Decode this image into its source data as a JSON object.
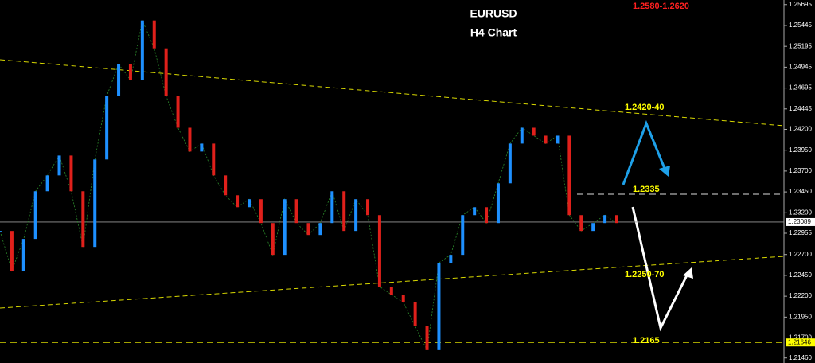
{
  "chart_data": {
    "type": "line",
    "title": "EURUSD",
    "subtitle": "H4 Chart",
    "values": [
      1.22982,
      1.22506,
      1.22887,
      1.23458,
      1.23648,
      1.23886,
      1.23458,
      1.22791,
      1.23839,
      1.246,
      1.24981,
      1.24791,
      1.25505,
      1.25171,
      1.246,
      1.24219,
      1.23934,
      1.24029,
      1.23648,
      1.2341,
      1.23267,
      1.23363,
      1.23077,
      1.22696,
      1.23363,
      1.23077,
      1.22934,
      1.23077,
      1.23458,
      1.22982,
      1.23363,
      1.23172,
      1.22315,
      1.2222,
      1.22125,
      1.21839,
      1.21554,
      1.22601,
      1.22696,
      1.23172,
      1.23267,
      1.23077,
      1.23553,
      1.24029,
      1.24219,
      1.24124,
      1.24029,
      1.24124,
      1.23172,
      1.22982,
      1.23077,
      1.23172,
      1.23077
    ],
    "up_color": "#1e90ff",
    "down_color": "#e0201b",
    "ylim": [
      1.214,
      1.2575
    ],
    "yticks": [
      1.25695,
      1.25445,
      1.25195,
      1.24945,
      1.24695,
      1.24445,
      {
        "value": 1.242,
        "label": "1.24200"
      },
      {
        "value": 1.2395,
        "label": "1.23950"
      },
      {
        "value": 1.237,
        "label": "1.23700"
      },
      {
        "value": 1.2345,
        "label": "1.23450"
      },
      {
        "value": 1.232,
        "label": "1.23200"
      },
      1.22955,
      {
        "value": 1.227,
        "label": "1.22700"
      },
      {
        "value": 1.2245,
        "label": "1.22450"
      },
      {
        "value": 1.222,
        "label": "1.22200"
      },
      {
        "value": 1.2195,
        "label": "1.21950"
      },
      {
        "value": 1.217,
        "label": "1.21700"
      },
      {
        "value": 1.2146,
        "label": "1.21460"
      }
    ],
    "current_price": 1.23089,
    "low_price": 1.21646,
    "annotations": [
      {
        "text": "1.2580-1.2620",
        "color": "#ff2020"
      },
      {
        "text": "1.2420-40",
        "color": "#ffff00"
      },
      {
        "text": "1.2335",
        "color": "#ffff00"
      },
      {
        "text": "1.2250-70",
        "color": "#ffff00"
      },
      {
        "text": "1.2165",
        "color": "#ffff00"
      }
    ]
  }
}
